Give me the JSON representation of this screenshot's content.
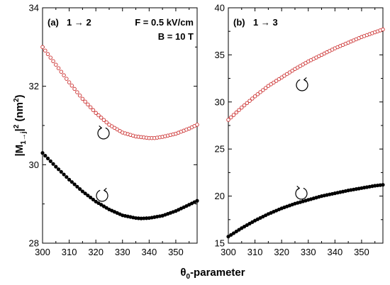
{
  "figure": {
    "ylabel": "|M₁→ⱼ|² (nm²)",
    "ylabel_main": "|M",
    "ylabel_sub": "1→j",
    "ylabel_mid": "|",
    "ylabel_sup": "2",
    "ylabel_unit": "(nm",
    "ylabel_unit_sup": "2",
    "ylabel_close": ")",
    "xlabel": "θ₀-parameter",
    "xlabel_main": "θ",
    "xlabel_sub": "0",
    "xlabel_rest": "-parameter"
  },
  "chart_data": [
    {
      "type": "scatter",
      "panel_label": "(a)",
      "transition": "1 → 2",
      "annotations": [
        "F = 0.5 kV/cm",
        "B = 10 T"
      ],
      "xlim": [
        300,
        358
      ],
      "ylim": [
        28,
        34
      ],
      "xticks": [
        300,
        310,
        320,
        330,
        340,
        350
      ],
      "yticks": [
        28,
        30,
        32,
        34
      ],
      "x_step": 1,
      "series": [
        {
          "name": "",
          "marker": "open-circle",
          "color": "#cc3333",
          "polarization_arrow": "counter-clockwise",
          "x": [
            300,
            305,
            310,
            315,
            320,
            325,
            330,
            335,
            340,
            342,
            345,
            350,
            355,
            358
          ],
          "y": [
            33.0,
            32.55,
            32.1,
            31.68,
            31.32,
            31.02,
            30.82,
            30.72,
            30.68,
            30.68,
            30.71,
            30.79,
            30.92,
            31.02
          ]
        },
        {
          "name": "",
          "marker": "filled-circle",
          "color": "#000000",
          "polarization_arrow": "clockwise",
          "x": [
            300,
            305,
            310,
            315,
            320,
            325,
            330,
            335,
            337,
            340,
            345,
            350,
            355,
            358
          ],
          "y": [
            30.3,
            29.95,
            29.62,
            29.32,
            29.06,
            28.86,
            28.71,
            28.64,
            28.63,
            28.64,
            28.7,
            28.82,
            28.98,
            29.08
          ]
        }
      ]
    },
    {
      "type": "scatter",
      "panel_label": "(b)",
      "transition": "1 → 3",
      "annotations": [],
      "xlim": [
        300,
        358
      ],
      "ylim": [
        15,
        40
      ],
      "xticks": [
        300,
        310,
        320,
        330,
        340,
        350
      ],
      "yticks": [
        15,
        20,
        25,
        30,
        35,
        40
      ],
      "x_step": 1,
      "series": [
        {
          "name": "",
          "marker": "open-circle",
          "color": "#cc3333",
          "polarization_arrow": "clockwise",
          "x": [
            300,
            305,
            310,
            315,
            320,
            325,
            330,
            335,
            340,
            345,
            350,
            355,
            358
          ],
          "y": [
            28.1,
            29.4,
            30.6,
            31.7,
            32.6,
            33.5,
            34.3,
            35.0,
            35.7,
            36.3,
            36.9,
            37.4,
            37.7
          ]
        },
        {
          "name": "",
          "marker": "filled-circle",
          "color": "#000000",
          "polarization_arrow": "counter-clockwise",
          "x": [
            300,
            305,
            310,
            315,
            320,
            325,
            330,
            335,
            340,
            345,
            350,
            355,
            358
          ],
          "y": [
            15.7,
            16.6,
            17.4,
            18.1,
            18.7,
            19.2,
            19.6,
            20.0,
            20.3,
            20.6,
            20.85,
            21.1,
            21.2
          ]
        }
      ]
    }
  ]
}
